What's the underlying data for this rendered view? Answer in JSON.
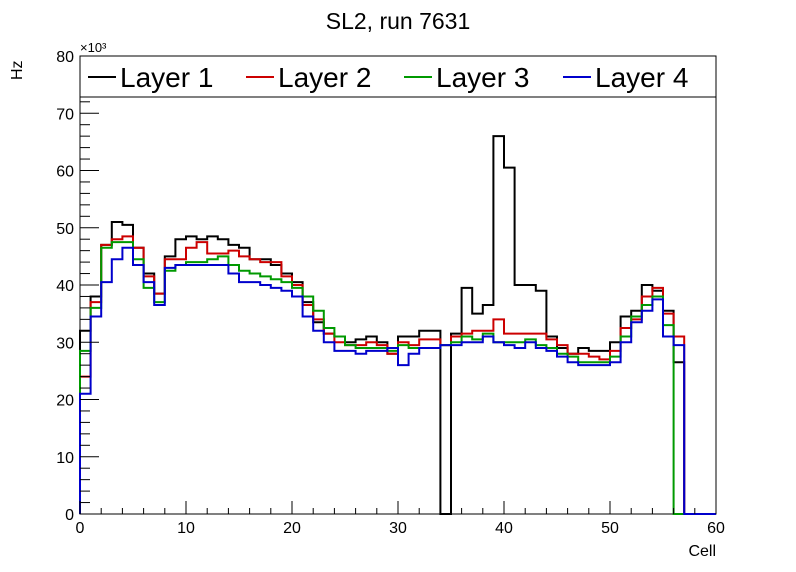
{
  "chart_data": {
    "type": "line",
    "title": "SL2, run 7631",
    "xlabel": "Cell",
    "ylabel": "Hz",
    "y_multiplier": "×10³",
    "xlim": [
      0,
      60
    ],
    "ylim": [
      0,
      80
    ],
    "x_ticks": [
      0,
      10,
      20,
      30,
      40,
      50,
      60
    ],
    "y_ticks": [
      0,
      10,
      20,
      30,
      40,
      50,
      60,
      70,
      80
    ],
    "grid": false,
    "legend_position": "top",
    "step": true,
    "bin_edges_start": 0,
    "bin_width": 1,
    "series": [
      {
        "name": "Layer 1",
        "color": "#000000",
        "values": [
          32,
          38,
          47,
          51,
          50.5,
          46.5,
          42,
          38.5,
          45,
          48,
          48.5,
          48,
          48.5,
          48,
          47,
          46.5,
          44.5,
          44.5,
          43.5,
          42,
          40.5,
          37,
          33.5,
          31.5,
          31,
          30,
          30.5,
          31,
          30,
          28,
          31,
          31,
          32,
          32,
          0,
          31.5,
          39.5,
          35,
          36.5,
          66,
          60.5,
          40,
          40,
          39,
          31,
          29,
          28,
          29,
          28.5,
          28.5,
          30,
          34.5,
          35.5,
          40,
          39,
          35.5,
          26.5,
          0,
          0,
          0
        ]
      },
      {
        "name": "Layer 2",
        "color": "#cc0000",
        "values": [
          24,
          37,
          47,
          48,
          48.5,
          46.5,
          41.5,
          38.5,
          44.5,
          44.5,
          46.5,
          47.5,
          45.5,
          45.5,
          46,
          45,
          44.5,
          44,
          44,
          41.5,
          40,
          36.5,
          34,
          31.5,
          30,
          29.5,
          29.5,
          30,
          29.5,
          28,
          30,
          29.5,
          30.5,
          30.5,
          29.5,
          31,
          31.5,
          32,
          32,
          34,
          31.5,
          31.5,
          31.5,
          31.5,
          30.5,
          29.5,
          28,
          28,
          27.5,
          27,
          28.5,
          32.5,
          34,
          38,
          39.5,
          35,
          31,
          0,
          0,
          0
        ]
      },
      {
        "name": "Layer 3",
        "color": "#009900",
        "values": [
          28.5,
          36,
          46.5,
          47.5,
          47.5,
          44.5,
          39.5,
          37,
          42.5,
          43.5,
          44,
          44,
          44.5,
          45,
          43.5,
          42.5,
          42,
          41.5,
          41,
          40.5,
          39.5,
          38,
          35.5,
          32.5,
          31,
          29.5,
          29,
          29,
          29,
          28.5,
          29.5,
          29,
          29,
          29,
          29.5,
          30,
          31,
          30.5,
          31.5,
          30,
          30,
          30,
          30.5,
          29.5,
          29,
          28,
          27.5,
          26.5,
          26.5,
          26.5,
          27.5,
          31,
          34.5,
          36.5,
          38,
          33,
          0,
          0,
          0,
          0
        ]
      },
      {
        "name": "Layer 4",
        "color": "#0000cc",
        "values": [
          21,
          34.5,
          40.5,
          44.5,
          46.5,
          43.5,
          40.5,
          36.5,
          43,
          43.5,
          43.5,
          43.5,
          43.5,
          43.5,
          42,
          40.5,
          40.5,
          40,
          39.5,
          39,
          38,
          34.5,
          32,
          30,
          28.5,
          28.5,
          28,
          28.5,
          28.5,
          29,
          26,
          28,
          29,
          29,
          29.5,
          29.5,
          30,
          30,
          31,
          30,
          29.5,
          29,
          30,
          29,
          28.5,
          27.5,
          26.5,
          26,
          26,
          26,
          26.5,
          30,
          33.5,
          35.5,
          37.5,
          31,
          29.5,
          0,
          0,
          0
        ]
      }
    ]
  }
}
